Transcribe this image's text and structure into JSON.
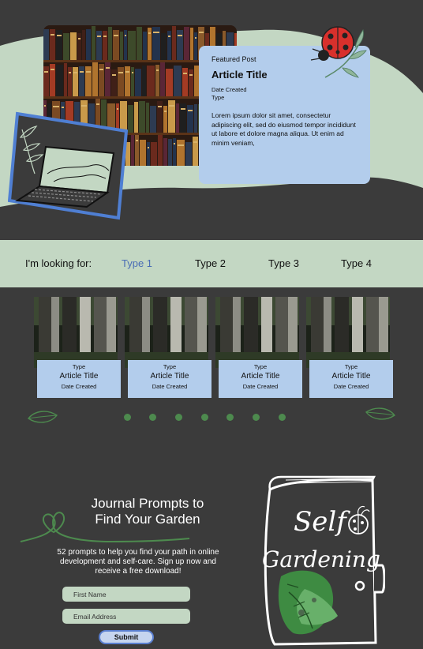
{
  "featured": {
    "kicker": "Featured Post",
    "title": "Article Title",
    "date": "Date Created",
    "type": "Type",
    "excerpt": "Lorem ipsum dolor sit amet, consectetur adipiscing elit, sed do eiusmod tempor incididunt ut labore et dolore magna aliqua. Ut enim ad minim veniam,"
  },
  "filter": {
    "label": "I'm looking for:",
    "tabs": [
      {
        "label": "Type 1",
        "active": true
      },
      {
        "label": "Type 2",
        "active": false
      },
      {
        "label": "Type 3",
        "active": false
      },
      {
        "label": "Type 4",
        "active": false
      }
    ]
  },
  "articles": [
    {
      "type": "Type",
      "title": "Article Title",
      "date": "Date Created"
    },
    {
      "type": "Type",
      "title": "Article Title",
      "date": "Date Created"
    },
    {
      "type": "Type",
      "title": "Article Title",
      "date": "Date Created"
    },
    {
      "type": "Type",
      "title": "Article Title",
      "date": "Date Created"
    }
  ],
  "carousel": {
    "dot_count": 7
  },
  "promo": {
    "title_line1": "Journal Prompts to",
    "title_line2": "Find Your Garden",
    "description": "52 prompts to help you find your path in online development and self-care. Sign up now and receive a free download!",
    "first_name_placeholder": "First Name",
    "email_placeholder": "Email Address",
    "submit_label": "Submit",
    "book_line1": "Self",
    "book_line2": "Gardening"
  },
  "colors": {
    "background": "#3b3b3b",
    "sage": "#c3d7c3",
    "card_blue": "#b3cdec",
    "accent_blue": "#4a6db5",
    "leaf_green": "#4d8a4e"
  },
  "icons": [
    "bookshelf-photo",
    "ladybug-icon",
    "laptop-icon",
    "leaf-icon",
    "heart-swirl-icon",
    "journal-book-illustration"
  ]
}
